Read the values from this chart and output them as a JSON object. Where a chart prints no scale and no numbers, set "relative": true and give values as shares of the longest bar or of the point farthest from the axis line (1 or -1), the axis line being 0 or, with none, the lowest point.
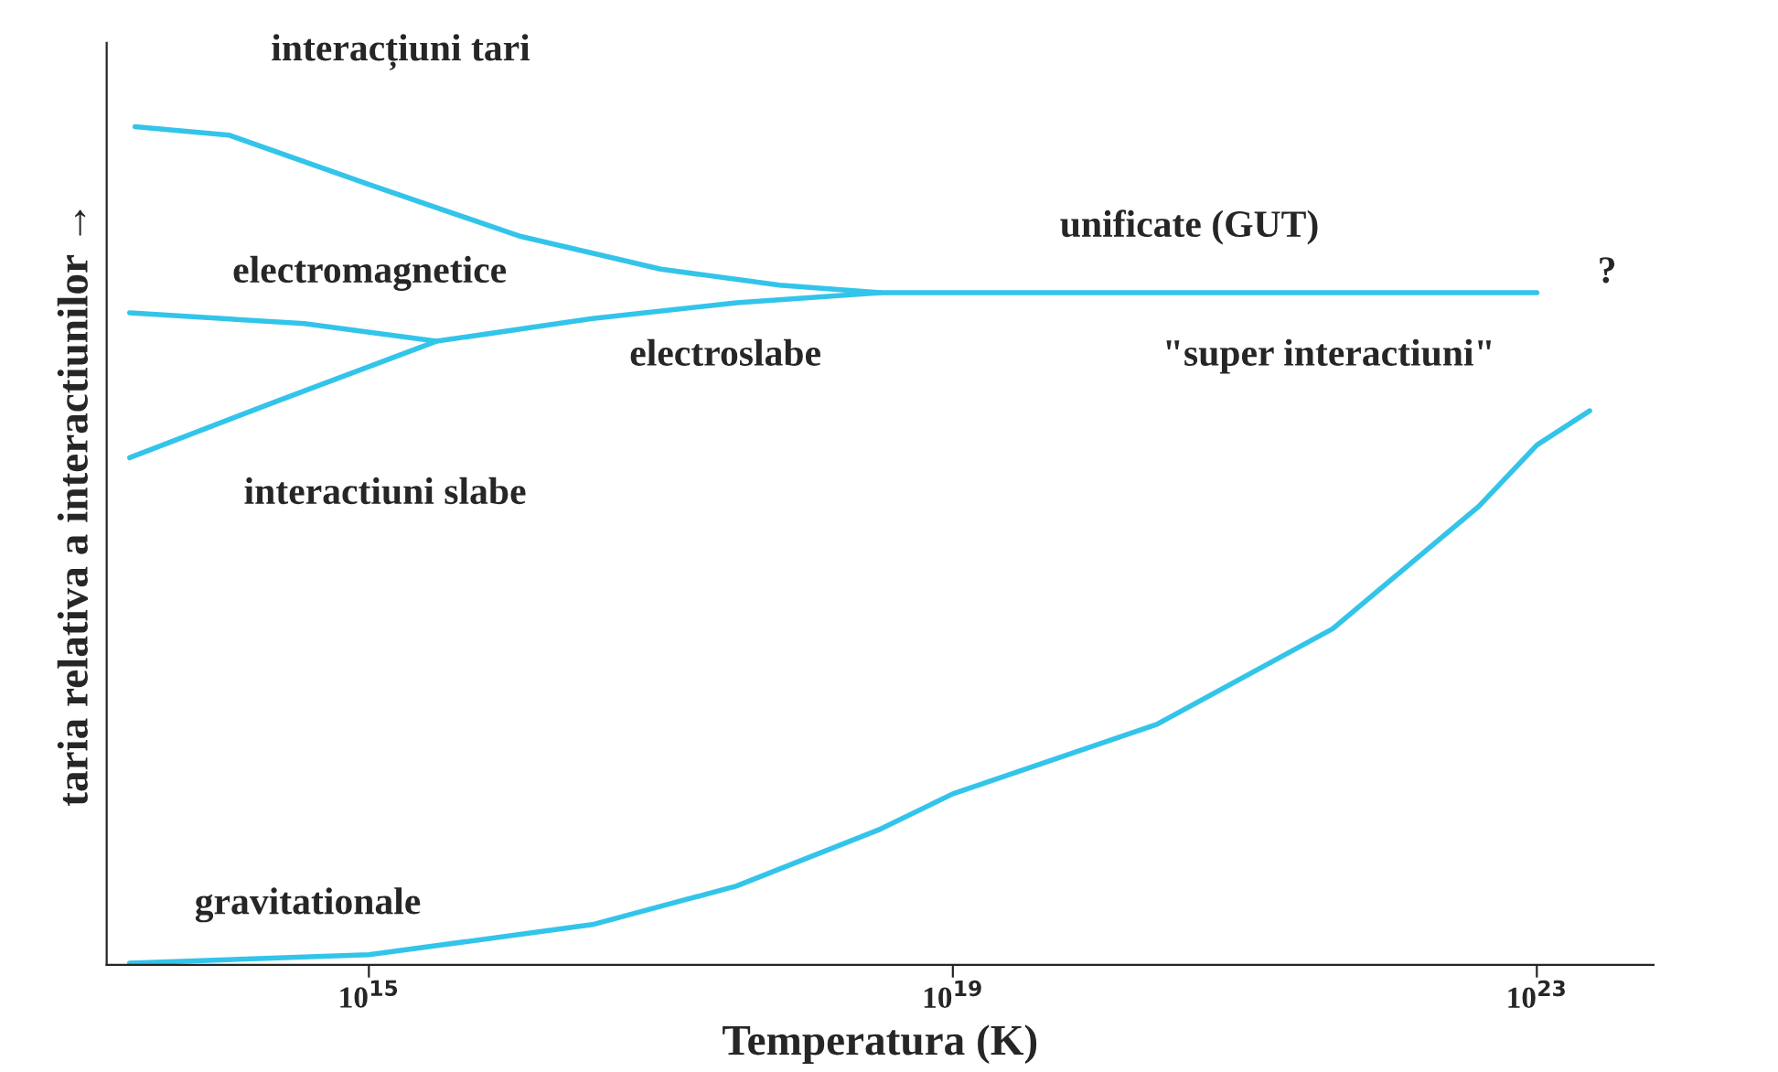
{
  "chart_data": {
    "type": "line",
    "relative": true,
    "log": "x",
    "xlabel": "Temperatura (K)",
    "ylabel": "taria relativa a interactiunilor →",
    "xlim": [
      16000000000000.0,
      6.3e+23
    ],
    "xticks": [
      {
        "value": 1000000000000000.0,
        "label": "10$^{15}$"
      },
      {
        "value": 1e+19,
        "label": "10$^{19}$"
      },
      {
        "value": 1e+23,
        "label": "10$^{23}$"
      }
    ],
    "tick_labels": "x",
    "grid": false,
    "legend": false,
    "marker": "none",
    "line_style": "solid",
    "series": [
      {
        "color": "#33c4ea",
        "x": [
          25000000000000.0,
          110000000000000.0,
          1000000000000000.0,
          1.1e+16,
          1e+17,
          6.5e+17,
          3.2e+18,
          1e+23
        ],
        "values": [
          1.0,
          0.99,
          0.931,
          0.869,
          0.83,
          0.811,
          0.802,
          0.802
        ]
      },
      {
        "color": "#33c4ea",
        "x": [
          23000000000000.0,
          360000000000000.0,
          2900000000000000.0,
          3.4e+16,
          3.3e+17,
          3.2e+18
        ],
        "values": [
          0.778,
          0.765,
          0.744,
          0.771,
          0.79,
          0.802
        ]
      },
      {
        "color": "#33c4ea",
        "x": [
          23000000000000.0,
          230000000000000.0,
          2900000000000000.0
        ],
        "values": [
          0.605,
          0.672,
          0.744
        ]
      },
      {
        "color": "#33c4ea",
        "x": [
          23000000000000.0,
          1000000000000000.0,
          3.4e+16,
          3.3e+17,
          3.2e+18,
          1e+19,
          2.5e+20,
          4e+21,
          4e+22,
          1e+23,
          2.3e+23
        ],
        "values": [
          0.002,
          0.012,
          0.048,
          0.094,
          0.162,
          0.204,
          0.287,
          0.401,
          0.547,
          0.62,
          0.661
        ]
      }
    ],
    "annotations": [
      "interacțiuni tari",
      "electromagnetice",
      "interactiuni slabe",
      "electroslabe",
      "unificate (GUT)",
      "?",
      "\"super interactiuni\"",
      "gravitationale"
    ]
  }
}
